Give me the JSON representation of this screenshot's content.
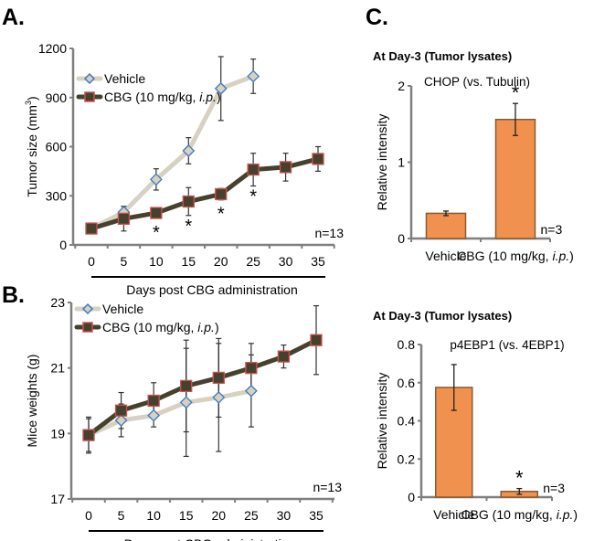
{
  "chart_data": [
    {
      "panel_label": "A.",
      "type": "line",
      "title": "",
      "xlabel": "Days post CBG administration",
      "ylabel": "Tumor size (mm³)",
      "ylabel_main": "Tumor size (mm",
      "ylabel_sup": "3",
      "ylabel_close": ")",
      "x": [
        0,
        5,
        10,
        15,
        20,
        25,
        30,
        35
      ],
      "xlim": [
        0,
        35
      ],
      "ylim": [
        0,
        1200
      ],
      "yticks": [
        0,
        300,
        600,
        900,
        1200
      ],
      "ytick_labels": [
        "0",
        "300",
        "600",
        "900",
        "1200"
      ],
      "xtick_labels": [
        "0",
        "5",
        "10",
        "15",
        "20",
        "25",
        "30",
        "35"
      ],
      "legend_position": "top-left",
      "annotation": "n=13",
      "series": [
        {
          "name": "Vehicle",
          "legend_label": "Vehicle",
          "marker": "diamond",
          "line_color": "#d6d1c0",
          "marker_edge": "#3c7ac0",
          "marker_fill": "#d6d1c0",
          "x": [
            0,
            5,
            10,
            15,
            20,
            25
          ],
          "values": [
            100,
            200,
            400,
            575,
            955,
            1030
          ],
          "errors": [
            10,
            35,
            65,
            80,
            195,
            105
          ]
        },
        {
          "name": "CBG (10 mg/kg, i.p.)",
          "legend_label_main": "CBG (10 mg/kg, ",
          "legend_label_italic": "i.p.",
          "legend_label_end": ")",
          "marker": "square",
          "line_color": "#45412c",
          "marker_edge": "#d05050",
          "marker_fill": "#45412c",
          "x": [
            0,
            5,
            10,
            15,
            20,
            25,
            30,
            35
          ],
          "values": [
            100,
            160,
            195,
            265,
            310,
            460,
            475,
            525
          ],
          "errors": [
            10,
            75,
            15,
            85,
            35,
            100,
            85,
            75
          ]
        }
      ],
      "significance_markers": [
        10,
        15,
        20,
        25
      ],
      "significance_symbol": "*"
    },
    {
      "panel_label": "B.",
      "type": "line",
      "title": "",
      "xlabel": "Days post CBG administration",
      "ylabel": "Mice weights (g)",
      "x": [
        0,
        5,
        10,
        15,
        20,
        25,
        30,
        35
      ],
      "xlim": [
        0,
        35
      ],
      "ylim": [
        17,
        23
      ],
      "yticks": [
        17,
        19,
        21,
        23
      ],
      "ytick_labels": [
        "17",
        "19",
        "21",
        "23"
      ],
      "xtick_labels": [
        "0",
        "5",
        "10",
        "15",
        "20",
        "25",
        "30",
        "35"
      ],
      "legend_position": "top-left",
      "annotation": "n=13",
      "series": [
        {
          "name": "Vehicle",
          "legend_label": "Vehicle",
          "marker": "diamond",
          "x": [
            0,
            5,
            10,
            15,
            20,
            25
          ],
          "values": [
            18.95,
            19.4,
            19.55,
            19.95,
            20.1,
            20.3
          ],
          "errors": [
            0.5,
            0.5,
            0.35,
            1.65,
            1.65,
            1.1
          ]
        },
        {
          "name": "CBG (10 mg/kg, i.p.)",
          "legend_label_main": "CBG (10 mg/kg, ",
          "legend_label_italic": "i.p.",
          "legend_label_end": ")",
          "marker": "square",
          "x": [
            0,
            5,
            10,
            15,
            20,
            25,
            30,
            35
          ],
          "values": [
            18.95,
            19.7,
            20.0,
            20.45,
            20.7,
            21.0,
            21.35,
            21.85
          ],
          "errors": [
            0.55,
            0.55,
            0.55,
            1.4,
            1.2,
            0.75,
            0.35,
            1.05
          ]
        }
      ]
    },
    {
      "panel_label": "C.",
      "type": "bar",
      "heading": "At Day-3 (Tumor lysates)",
      "title": "CHOP (vs. Tubulin)",
      "ylabel": "Relative intensity",
      "categories": [
        "Vehicle",
        "CBG (10 mg/kg, i.p.)"
      ],
      "category_labels": [
        {
          "main": "Vehicle",
          "italic": "",
          "end": ""
        },
        {
          "main": "CBG (10 mg/kg, ",
          "italic": "i.p.",
          "end": ")"
        }
      ],
      "values": [
        0.33,
        1.56
      ],
      "errors": [
        0.03,
        0.21
      ],
      "ylim": [
        0,
        2
      ],
      "yticks": [
        0,
        1,
        2
      ],
      "ytick_labels": [
        "0",
        "1",
        "2"
      ],
      "annotation": "n=3",
      "significance_index": 1,
      "significance_symbol": "*",
      "bar_color": "#f0914f",
      "bar_edge": "#8a5a2e"
    },
    {
      "panel_label": "",
      "type": "bar",
      "heading": "At Day-3 (Tumor lysates)",
      "title": "p4EBP1 (vs. 4EBP1)",
      "ylabel": "Relative intensity",
      "categories": [
        "Vehicle",
        "CBG (10 mg/kg, i.p.)"
      ],
      "category_labels": [
        {
          "main": "Vehicle",
          "italic": "",
          "end": ""
        },
        {
          "main": "CBG (10 mg/kg, ",
          "italic": "i.p.",
          "end": ")"
        }
      ],
      "values": [
        0.575,
        0.03
      ],
      "errors": [
        0.12,
        0.015
      ],
      "ylim": [
        0,
        0.8
      ],
      "yticks": [
        0,
        0.2,
        0.4,
        0.6,
        0.8
      ],
      "ytick_labels": [
        "0",
        "0.2",
        "0.4",
        "0.6",
        "0.8"
      ],
      "annotation": "n=3",
      "significance_index": 1,
      "significance_symbol": "*",
      "bar_color": "#f0914f",
      "bar_edge": "#8a5a2e"
    }
  ]
}
